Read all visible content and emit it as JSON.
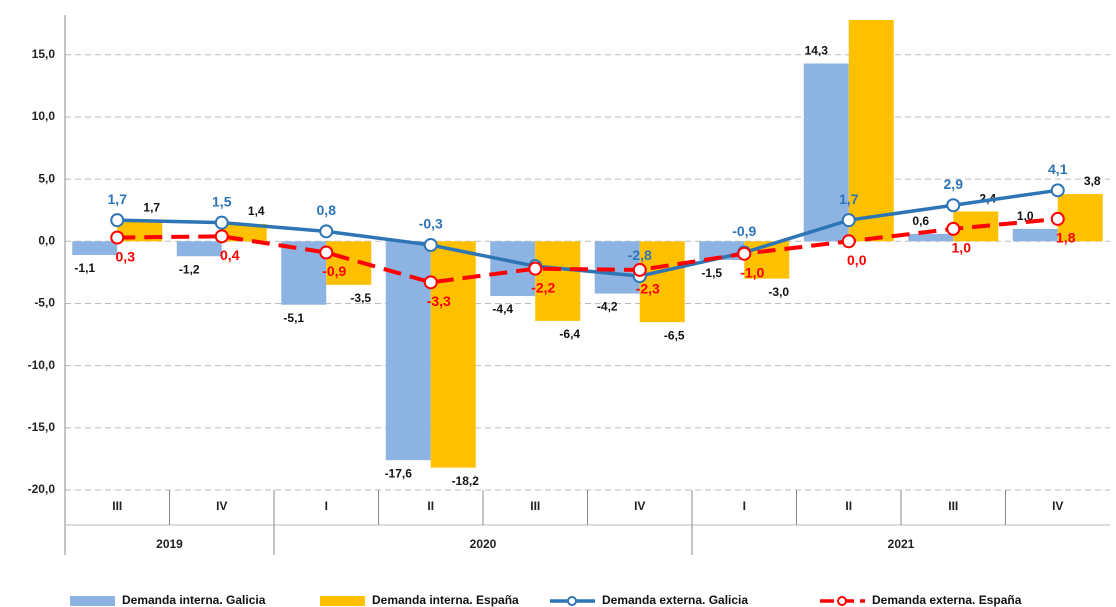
{
  "chart_data": {
    "type": "bar_line",
    "categories": [
      "III",
      "IV",
      "I",
      "II",
      "III",
      "IV",
      "I",
      "II",
      "III",
      "IV"
    ],
    "groups": [
      {
        "name": "2019",
        "categories": 2
      },
      {
        "name": "2020",
        "categories": 4
      },
      {
        "name": "2021",
        "categories": 4
      }
    ],
    "ylim": [
      -20,
      18.2
    ],
    "yticks": [
      {
        "value": -20,
        "label": "-20,0"
      },
      {
        "value": -15,
        "label": "-15,0"
      },
      {
        "value": -10,
        "label": "-10,0"
      },
      {
        "value": -5,
        "label": "-5,0"
      },
      {
        "value": 0,
        "label": "0,0"
      },
      {
        "value": 5,
        "label": "5,0"
      },
      {
        "value": 10,
        "label": "10,0"
      },
      {
        "value": 15,
        "label": "15,0"
      }
    ],
    "grid": true,
    "legend": "bottom",
    "series": [
      {
        "name": "Demanda interna. Galicia",
        "kind": "bar",
        "color": "#8db3e2",
        "values": [
          -1.1,
          -1.2,
          -5.1,
          -17.6,
          -4.4,
          -4.2,
          -1.5,
          14.3,
          0.6,
          1.0
        ],
        "value_labels": [
          "-1,1",
          "-1,2",
          "-5,1",
          "-17,6",
          "-4,4",
          "-4,2",
          "-1,5",
          "14,3",
          "0,6",
          "1,0"
        ]
      },
      {
        "name": "Demanda interna. España",
        "kind": "bar",
        "color": "#ffc000",
        "values": [
          1.7,
          1.4,
          -3.5,
          -18.2,
          -6.4,
          -6.5,
          -3.0,
          17.8,
          2.4,
          3.8
        ],
        "value_labels": [
          "1,7",
          "1,4",
          "-3,5",
          "-18,2",
          "-6,4",
          "-6,5",
          "-3,0",
          null,
          "2,4",
          "3,8"
        ]
      },
      {
        "name": "Demanda externa. Galicia",
        "kind": "line",
        "color": "#2e75b6",
        "values": [
          1.7,
          1.5,
          0.8,
          -0.3,
          -2.0,
          -2.8,
          -0.9,
          1.7,
          2.9,
          4.1
        ],
        "value_labels": [
          "1,7",
          "1,5",
          "0,8",
          "-0,3",
          null,
          "-2,8",
          "-0,9",
          "1,7",
          "2,9",
          "4,1"
        ]
      },
      {
        "name": "Demanda externa. España",
        "kind": "line",
        "dashed": true,
        "color": "#ff0000",
        "values": [
          0.3,
          0.4,
          -0.9,
          -3.3,
          -2.2,
          -2.3,
          -1.0,
          0.0,
          1.0,
          1.8
        ],
        "value_labels": [
          "0,3",
          "0,4",
          "-0,9",
          "-3,3",
          "-2,2",
          "-2,3",
          "-1,0",
          "0,0",
          "1,0",
          "1,8"
        ]
      }
    ]
  }
}
